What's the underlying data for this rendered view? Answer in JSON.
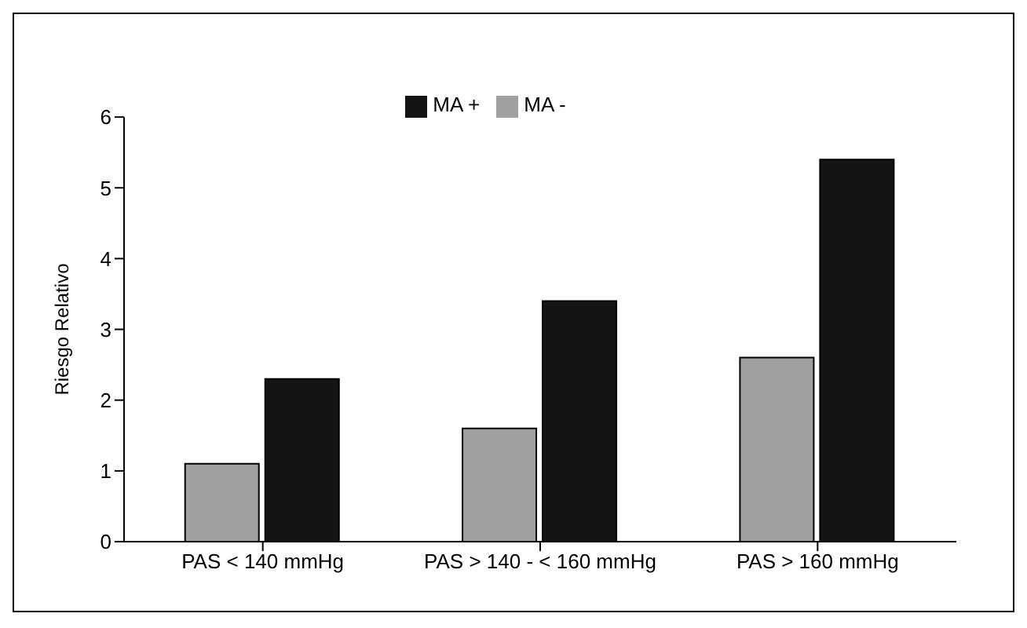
{
  "chart_data": {
    "type": "bar",
    "ylabel": "Riesgo Relativo",
    "categories": [
      "PAS < 140 mmHg",
      "PAS > 140 - < 160 mmHg",
      "PAS > 160 mmHg"
    ],
    "series": [
      {
        "name": "MA -",
        "color": "#a0a0a0",
        "values": [
          1.1,
          1.6,
          2.6
        ]
      },
      {
        "name": "MA +",
        "color": "#141414",
        "values": [
          2.3,
          3.4,
          5.4
        ]
      }
    ],
    "ylim": [
      0,
      6
    ],
    "yticks": [
      0,
      1,
      2,
      3,
      4,
      5,
      6
    ],
    "grid": false,
    "legend": "top"
  }
}
